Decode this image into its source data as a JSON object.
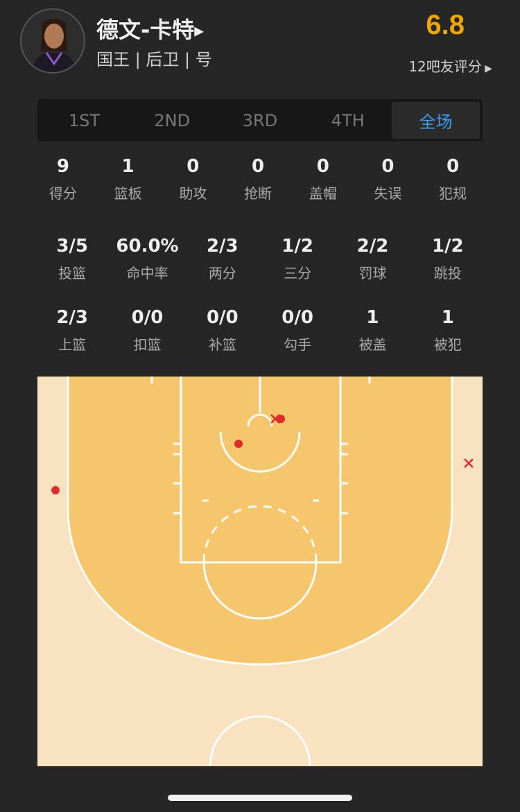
{
  "player": {
    "name": "德文-卡特",
    "info": "国王 | 后卫 | 号",
    "rating": "6.8",
    "rating_count": "12吧友评分"
  },
  "tabs": [
    {
      "label": "1ST"
    },
    {
      "label": "2ND"
    },
    {
      "label": "3RD"
    },
    {
      "label": "4TH"
    },
    {
      "label": "全场",
      "active": true
    }
  ],
  "stats_main": [
    {
      "v": "9",
      "l": "得分"
    },
    {
      "v": "1",
      "l": "篮板"
    },
    {
      "v": "0",
      "l": "助攻"
    },
    {
      "v": "0",
      "l": "抢断"
    },
    {
      "v": "0",
      "l": "盖帽"
    },
    {
      "v": "0",
      "l": "失误"
    },
    {
      "v": "0",
      "l": "犯规"
    }
  ],
  "stats_shoot1": [
    {
      "v": "3/5",
      "l": "投篮"
    },
    {
      "v": "60.0%",
      "l": "命中率"
    },
    {
      "v": "2/3",
      "l": "两分"
    },
    {
      "v": "1/2",
      "l": "三分"
    },
    {
      "v": "2/2",
      "l": "罚球"
    },
    {
      "v": "1/2",
      "l": "跳投"
    }
  ],
  "stats_shoot2": [
    {
      "v": "2/3",
      "l": "上篮"
    },
    {
      "v": "0/0",
      "l": "扣篮"
    },
    {
      "v": "0/0",
      "l": "补篮"
    },
    {
      "v": "0/0",
      "l": "勾手"
    },
    {
      "v": "1",
      "l": "被盖"
    },
    {
      "v": "1",
      "l": "被犯"
    }
  ],
  "shot_chart": {
    "colors": {
      "paint": "#f5c66c",
      "outside": "#f9e2bf",
      "shot": "#e02b2b",
      "accent": "#f0a500",
      "tab_active": "#3d9be9"
    },
    "shots": [
      {
        "result": "made"
      },
      {
        "result": "made"
      },
      {
        "result": "made"
      },
      {
        "result": "missed"
      },
      {
        "result": "missed"
      }
    ]
  }
}
